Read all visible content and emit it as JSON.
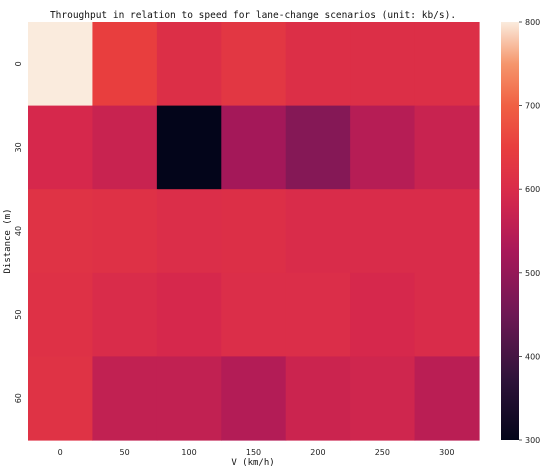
{
  "chart_data": {
    "type": "heatmap",
    "title": "Throughput in relation to speed for lane-change scenarios (unit: kb/s).",
    "xlabel": "V (km/h)",
    "ylabel": "Distance (m)",
    "x_categories": [
      "0",
      "50",
      "100",
      "150",
      "200",
      "250",
      "300"
    ],
    "y_categories": [
      "0",
      "30",
      "40",
      "50",
      "60"
    ],
    "values": [
      [
        800,
        650,
        610,
        630,
        610,
        610,
        610
      ],
      [
        590,
        570,
        300,
        520,
        480,
        545,
        570
      ],
      [
        620,
        615,
        605,
        610,
        600,
        600,
        600
      ],
      [
        615,
        600,
        590,
        605,
        605,
        590,
        600
      ],
      [
        620,
        560,
        560,
        540,
        575,
        580,
        550
      ]
    ],
    "colorbar": {
      "min": 300,
      "max": 800,
      "ticks": [
        "300",
        "400",
        "500",
        "600",
        "700",
        "800"
      ]
    },
    "colormap": "rocket",
    "grid": false
  }
}
